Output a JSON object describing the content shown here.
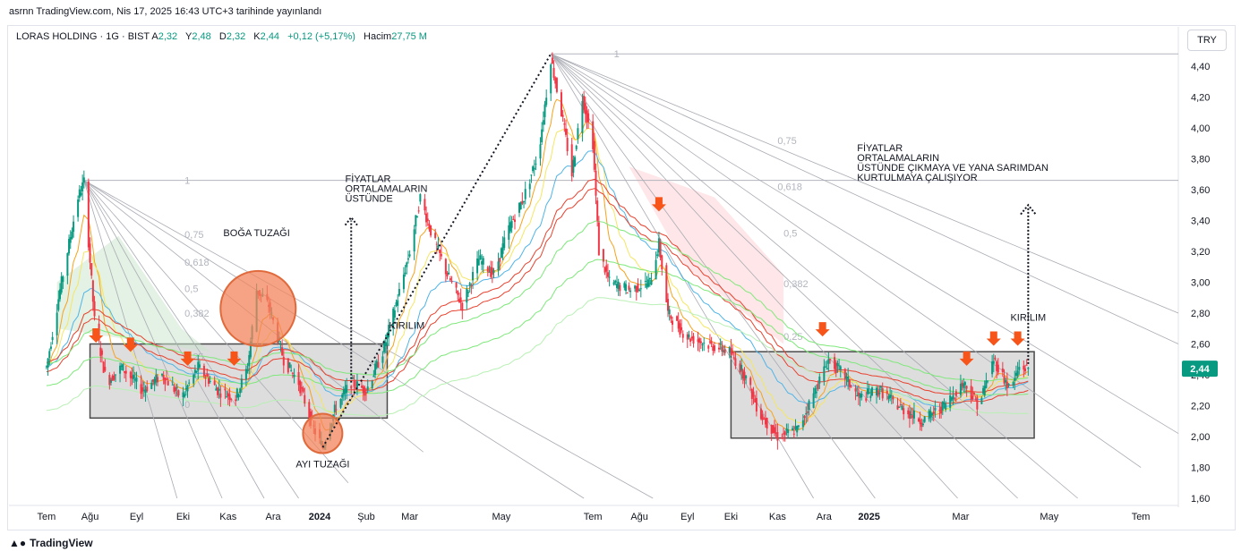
{
  "header": {
    "published": "asrnn TradingView.com, Nis 17, 2025 16:43 UTC+3 tarihinde yayınlandı"
  },
  "legend": {
    "symbol": "LORAS HOLDING · 1G · BIST",
    "open_label": "A",
    "open": "2,32",
    "high_label": "Y",
    "high": "2,48",
    "low_label": "D",
    "low": "2,32",
    "close_label": "K",
    "close": "2,44",
    "change": "+0,12 (+5,17%)",
    "volume_label": "Hacim",
    "volume": "27,75 M"
  },
  "currency": "TRY",
  "footer": {
    "brand": "TradingView",
    "logo": "tradingview-logo-icon"
  },
  "chart_data": {
    "type": "candlestick",
    "y_range": [
      1.5,
      4.6
    ],
    "y_ticks": [
      "4,40",
      "4,20",
      "4,00",
      "3,80",
      "3,60",
      "3,40",
      "3,20",
      "3,00",
      "2,80",
      "2,60",
      "2,40",
      "2,20",
      "2,00",
      "1,80",
      "1,60"
    ],
    "x_ticks": [
      "Tem",
      "Ağu",
      "Eyl",
      "Eki",
      "Kas",
      "Ara",
      "2024",
      "Şub",
      "Mar",
      "May",
      "Tem",
      "Ağu",
      "Eyl",
      "Eki",
      "Kas",
      "Ara",
      "2025",
      "Mar",
      "May",
      "Tem"
    ],
    "bold_x_ticks": [
      "2024",
      "2025"
    ],
    "last_price": "2,44",
    "price_path": [
      [
        "2023-07-03",
        2.45
      ],
      [
        "2023-07-12",
        2.95
      ],
      [
        "2023-07-24",
        3.55
      ],
      [
        "2023-07-28",
        3.65
      ],
      [
        "2023-08-04",
        2.75
      ],
      [
        "2023-08-12",
        2.35
      ],
      [
        "2023-08-22",
        2.45
      ],
      [
        "2023-09-05",
        2.3
      ],
      [
        "2023-09-18",
        2.4
      ],
      [
        "2023-10-01",
        2.25
      ],
      [
        "2023-10-12",
        2.45
      ],
      [
        "2023-10-25",
        2.3
      ],
      [
        "2023-11-06",
        2.25
      ],
      [
        "2023-11-14",
        2.45
      ],
      [
        "2023-11-20",
        2.95
      ],
      [
        "2023-11-28",
        2.85
      ],
      [
        "2023-12-08",
        2.5
      ],
      [
        "2023-12-18",
        2.35
      ],
      [
        "2023-12-28",
        2.05
      ],
      [
        "2024-01-03",
        1.93
      ],
      [
        "2024-01-12",
        2.2
      ],
      [
        "2024-01-22",
        2.35
      ],
      [
        "2024-02-01",
        2.3
      ],
      [
        "2024-02-12",
        2.55
      ],
      [
        "2024-02-22",
        2.9
      ],
      [
        "2024-03-01",
        3.2
      ],
      [
        "2024-03-08",
        3.55
      ],
      [
        "2024-03-16",
        3.3
      ],
      [
        "2024-03-26",
        3.05
      ],
      [
        "2024-04-05",
        2.85
      ],
      [
        "2024-04-16",
        3.15
      ],
      [
        "2024-04-26",
        3.05
      ],
      [
        "2024-05-06",
        3.35
      ],
      [
        "2024-05-16",
        3.55
      ],
      [
        "2024-05-26",
        3.85
      ],
      [
        "2024-06-03",
        4.45
      ],
      [
        "2024-06-10",
        4.1
      ],
      [
        "2024-06-17",
        3.7
      ],
      [
        "2024-06-24",
        4.2
      ],
      [
        "2024-07-01",
        3.9
      ],
      [
        "2024-07-05",
        3.2
      ],
      [
        "2024-07-12",
        3.0
      ],
      [
        "2024-07-25",
        2.95
      ],
      [
        "2024-08-08",
        3.0
      ],
      [
        "2024-08-14",
        3.25
      ],
      [
        "2024-08-20",
        2.8
      ],
      [
        "2024-09-01",
        2.65
      ],
      [
        "2024-09-15",
        2.6
      ],
      [
        "2024-09-30",
        2.55
      ],
      [
        "2024-10-10",
        2.4
      ],
      [
        "2024-10-20",
        2.15
      ],
      [
        "2024-11-01",
        2.0
      ],
      [
        "2024-11-15",
        2.05
      ],
      [
        "2024-11-26",
        2.3
      ],
      [
        "2024-12-05",
        2.5
      ],
      [
        "2024-12-15",
        2.4
      ],
      [
        "2024-12-25",
        2.25
      ],
      [
        "2025-01-08",
        2.3
      ],
      [
        "2025-01-20",
        2.2
      ],
      [
        "2025-02-05",
        2.1
      ],
      [
        "2025-02-20",
        2.2
      ],
      [
        "2025-03-05",
        2.35
      ],
      [
        "2025-03-15",
        2.2
      ],
      [
        "2025-03-25",
        2.5
      ],
      [
        "2025-04-05",
        2.3
      ],
      [
        "2025-04-11",
        2.45
      ],
      [
        "2025-04-17",
        2.44
      ]
    ],
    "horizontal_lines": [
      {
        "name": "2023 high",
        "value": 3.66
      },
      {
        "name": "2024 high",
        "value": 4.48
      }
    ],
    "ranges": [
      {
        "name": "2023 range",
        "from": "2023-08-01",
        "to": "2024-02-15",
        "top": 2.6,
        "bottom": 2.12
      },
      {
        "name": "2024-25 range",
        "from": "2024-10-01",
        "to": "2025-04-21",
        "top": 2.55,
        "bottom": 1.99
      }
    ],
    "fib_levels_left": [
      "1",
      "0,75",
      "0,618",
      "0,5",
      "0,382",
      "0,25",
      "0"
    ],
    "fib_levels_right": [
      "1",
      "0,75",
      "0,618",
      "0,5",
      "0,382",
      "0,25"
    ],
    "annotations": [
      {
        "text": "BOĞA TUZAĞI",
        "at": "2023-11-20",
        "price": 3.3
      },
      {
        "text": "AYI TUZAĞI",
        "at": "2024-01-03",
        "price": 1.8
      },
      {
        "text": "KIRILIM",
        "at": "2024-02-28",
        "price": 2.7
      },
      {
        "text": "FİYATLAR ORTALAMALARIN ÜSTÜNDE",
        "lines": [
          "FİYATLAR",
          "ORTALAMALARIN",
          "ÜSTÜNDE"
        ],
        "at": "2024-01-18",
        "price": 3.65
      },
      {
        "text": "KIRILIM",
        "at": "2025-04-17",
        "price": 2.75
      },
      {
        "text": "FİYATLAR ORTALAMALARIN ÜSTÜNDE ÇIKMAYA VE YANA SARIMDAN KURTULMAYA ÇALIŞIYOR",
        "lines": [
          "FİYATLAR",
          "ORTALAMALARIN",
          "ÜSTÜNDE ÇIKMAYA VE YANA SARIMDAN",
          "KURTULMAYA ÇALIŞIYOR"
        ],
        "at": "2024-12-24",
        "price": 3.85
      }
    ],
    "sell_arrows": [
      "2023-08-05",
      "2023-08-28",
      "2023-10-05",
      "2023-11-05",
      "2024-08-14",
      "2024-12-01",
      "2025-03-07",
      "2025-03-25",
      "2025-04-10"
    ],
    "colors": {
      "up": "#089981",
      "down": "#f23645",
      "range_box": "#d1d1d1",
      "trap_circle": "#f2845b",
      "arrow": "#f7541a",
      "ma_orange": "#f7a21b",
      "ma_yellow": "#f5e663",
      "ma_blue": "#4fb4e8",
      "ma_red": "#e8412e",
      "ma_green": "#7ee87a",
      "last_price_bg": "#089981",
      "grid_lines": "#b2b5be"
    }
  }
}
